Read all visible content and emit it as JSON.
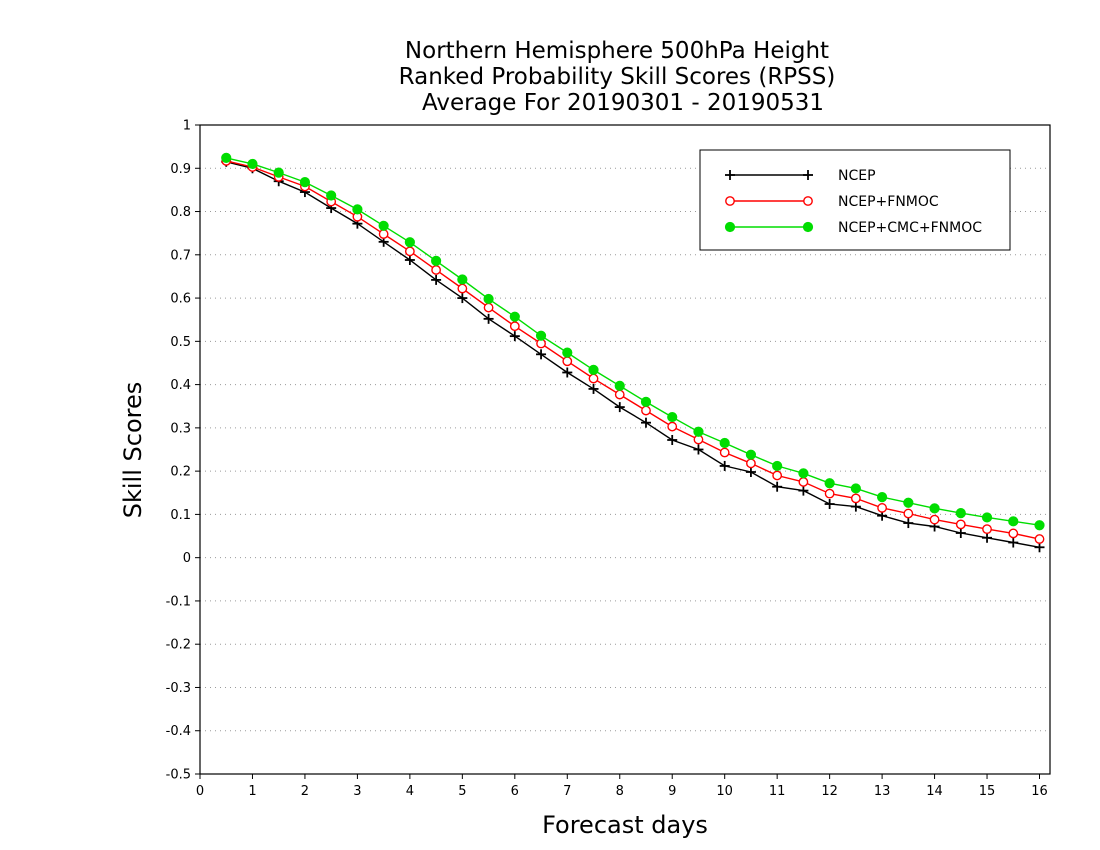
{
  "chart_data": {
    "type": "line",
    "title_lines": [
      "Northern Hemisphere 500hPa Height",
      "Ranked Probability Skill Scores (RPSS)",
      "Average For 20190301 - 20190531"
    ],
    "xlabel": "Forecast days",
    "ylabel": "Skill Scores",
    "xlim": [
      0,
      16.2
    ],
    "ylim": [
      -0.5,
      1
    ],
    "x_ticks": [
      0,
      1,
      2,
      3,
      4,
      5,
      6,
      7,
      8,
      9,
      10,
      11,
      12,
      13,
      14,
      15,
      16
    ],
    "y_ticks": [
      -0.5,
      -0.4,
      -0.3,
      -0.2,
      -0.1,
      0,
      0.1,
      0.2,
      0.3,
      0.4,
      0.5,
      0.6,
      0.7,
      0.8,
      0.9,
      1
    ],
    "y_tick_labels": [
      "-0.5",
      "-0.4",
      "-0.3",
      "-0.2",
      "-0.1",
      "0",
      "0.1",
      "0.2",
      "0.3",
      "0.4",
      "0.5",
      "0.6",
      "0.7",
      "0.8",
      "0.9",
      "1"
    ],
    "grid": "horizontal dotted",
    "legend_position": "top-right",
    "x": [
      0.5,
      1,
      1.5,
      2,
      2.5,
      3,
      3.5,
      4,
      4.5,
      5,
      5.5,
      6,
      6.5,
      7,
      7.5,
      8,
      8.5,
      9,
      9.5,
      10,
      10.5,
      11,
      11.5,
      12,
      12.5,
      13,
      13.5,
      14,
      14.5,
      15,
      15.5,
      16
    ],
    "series": [
      {
        "name": "NCEP",
        "color": "#000000",
        "marker": "plus",
        "values": [
          0.915,
          0.9,
          0.87,
          0.845,
          0.808,
          0.772,
          0.73,
          0.688,
          0.642,
          0.6,
          0.552,
          0.512,
          0.47,
          0.428,
          0.39,
          0.348,
          0.312,
          0.272,
          0.25,
          0.212,
          0.198,
          0.164,
          0.155,
          0.124,
          0.118,
          0.097,
          0.08,
          0.072,
          0.057,
          0.046,
          0.035,
          0.024
        ]
      },
      {
        "name": "NCEP+FNMOC",
        "color": "#ff0000",
        "marker": "open-circle",
        "values": [
          0.917,
          0.903,
          0.88,
          0.858,
          0.823,
          0.788,
          0.748,
          0.708,
          0.665,
          0.622,
          0.578,
          0.535,
          0.495,
          0.454,
          0.414,
          0.377,
          0.34,
          0.303,
          0.273,
          0.243,
          0.218,
          0.19,
          0.175,
          0.148,
          0.137,
          0.115,
          0.102,
          0.088,
          0.077,
          0.066,
          0.056,
          0.043
        ]
      },
      {
        "name": "NCEP+CMC+FNMOC",
        "color": "#00dd00",
        "marker": "filled-circle",
        "values": [
          0.924,
          0.91,
          0.89,
          0.868,
          0.837,
          0.805,
          0.767,
          0.729,
          0.686,
          0.643,
          0.598,
          0.557,
          0.513,
          0.474,
          0.434,
          0.397,
          0.36,
          0.325,
          0.291,
          0.265,
          0.238,
          0.212,
          0.195,
          0.172,
          0.16,
          0.14,
          0.127,
          0.114,
          0.103,
          0.093,
          0.084,
          0.075
        ]
      }
    ]
  }
}
